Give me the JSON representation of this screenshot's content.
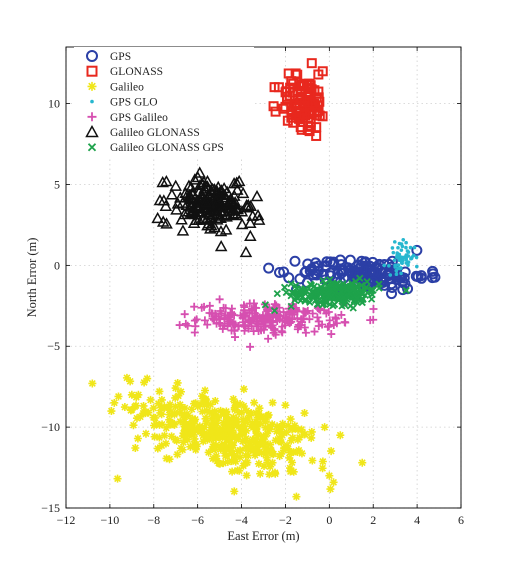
{
  "chart_data": {
    "type": "scatter",
    "title": "",
    "xlabel": "East Error (m)",
    "ylabel": "North Error (m)",
    "xlim": [
      -12,
      6
    ],
    "ylim": [
      -15,
      13.5
    ],
    "xticks": [
      -12,
      -10,
      -8,
      -6,
      -4,
      -2,
      0,
      2,
      4,
      6
    ],
    "yticks": [
      -15,
      -10,
      -5,
      0,
      5,
      10
    ],
    "grid": true,
    "legend_position": "top-left",
    "series": [
      {
        "name": "GPS",
        "marker": "circle",
        "color": "#2b3fa6",
        "cluster": {
          "cx": 1.6,
          "cy": -0.5,
          "sx": 1.4,
          "sy": 0.45,
          "n": 150,
          "rot": -0.05
        },
        "points": [
          [
            -1.5,
            -1.5
          ],
          [
            -0.8,
            -0.2
          ],
          [
            4.2,
            -0.8
          ],
          [
            2.0,
            -1.0
          ],
          [
            0.2,
            0.2
          ]
        ]
      },
      {
        "name": "GLONASS",
        "marker": "square",
        "color": "#e8281e",
        "cluster": {
          "cx": -1.2,
          "cy": 10.0,
          "sx": 0.55,
          "sy": 0.9,
          "n": 90,
          "rot": 0
        },
        "points": [
          [
            -0.8,
            12.5
          ],
          [
            -0.5,
            11.8
          ],
          [
            -0.3,
            12.0
          ],
          [
            -0.9,
            11.2
          ],
          [
            -1.8,
            10.5
          ],
          [
            -2.0,
            9.8
          ],
          [
            -0.6,
            8.0
          ],
          [
            -0.9,
            8.3
          ]
        ]
      },
      {
        "name": "Galileo",
        "marker": "asterisk",
        "color": "#f0e619",
        "cluster": {
          "cx": -4.8,
          "cy": -10.3,
          "sx": 2.1,
          "sy": 1.1,
          "n": 430,
          "rot": -0.42
        },
        "points": [
          [
            -10.8,
            -7.3
          ],
          [
            -8.3,
            -7.0
          ],
          [
            -9.0,
            -8.0
          ],
          [
            -1.5,
            -14.3
          ],
          [
            1.5,
            -12.2
          ],
          [
            0.5,
            -10.5
          ],
          [
            0.0,
            -13.0
          ],
          [
            -0.8,
            -10.3
          ],
          [
            -9.8,
            -8.5
          ]
        ]
      },
      {
        "name": "GPS GLO",
        "marker": "dot",
        "color": "#27b7cf",
        "cluster": {
          "cx": 3.3,
          "cy": 0.5,
          "sx": 0.3,
          "sy": 0.45,
          "n": 60,
          "rot": 0
        },
        "points": [
          [
            3.5,
            1.4
          ],
          [
            3.7,
            1.1
          ],
          [
            2.5,
            0.0
          ],
          [
            3.0,
            -0.1
          ]
        ]
      },
      {
        "name": "GPS Galileo",
        "marker": "plus",
        "color": "#d64fb0",
        "cluster": {
          "cx": -2.8,
          "cy": -3.3,
          "sx": 1.6,
          "sy": 0.45,
          "n": 230,
          "rot": 0
        },
        "points": [
          [
            -5.0,
            -2.1
          ],
          [
            0.3,
            -3.3
          ],
          [
            0.7,
            -3.5
          ],
          [
            -5.2,
            -3.0
          ]
        ]
      },
      {
        "name": "Galileo GLONASS",
        "marker": "triangle",
        "color": "#111111",
        "cluster": {
          "cx": -5.5,
          "cy": 3.7,
          "sx": 0.95,
          "sy": 0.75,
          "n": 180,
          "rot": -0.3
        },
        "points": [
          [
            -7.0,
            4.9
          ],
          [
            -3.8,
            0.8
          ],
          [
            -3.6,
            1.8
          ],
          [
            -3.2,
            2.8
          ],
          [
            -6.9,
            3.8
          ]
        ]
      },
      {
        "name": "Galileo GLONASS GPS",
        "marker": "x",
        "color": "#1ea24b",
        "cluster": {
          "cx": 0.3,
          "cy": -1.7,
          "sx": 1.0,
          "sy": 0.35,
          "n": 220,
          "rot": 0
        },
        "points": [
          [
            -2.5,
            -2.8
          ],
          [
            1.5,
            -2.3
          ],
          [
            1.2,
            -1.0
          ]
        ]
      }
    ]
  }
}
